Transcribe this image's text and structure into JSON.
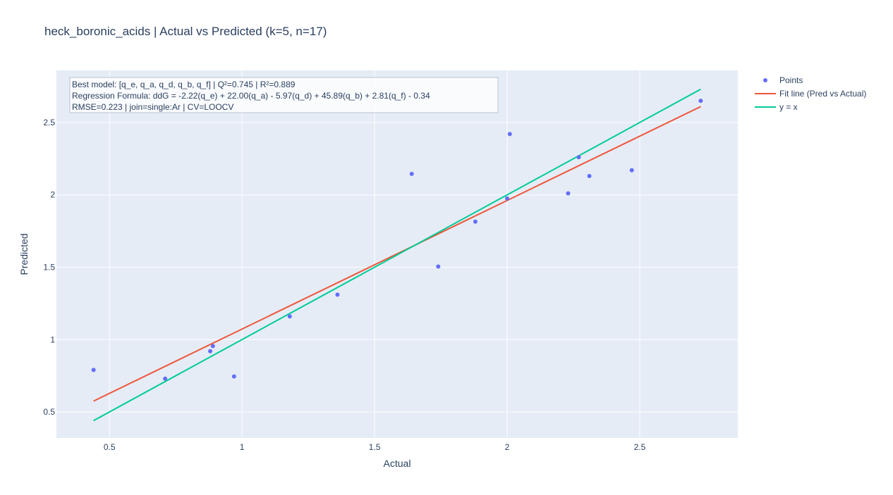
{
  "chart_data": {
    "type": "scatter",
    "title": "heck_boronic_acids | Actual vs Predicted (k=5, n=17)",
    "xlabel": "Actual",
    "ylabel": "Predicted",
    "xlim": [
      0.3,
      2.87
    ],
    "ylim": [
      0.32,
      2.86
    ],
    "xticks": [
      0.5,
      1,
      1.5,
      2,
      2.5
    ],
    "xtick_labels": [
      "0.5",
      "1",
      "1.5",
      "2",
      "2.5"
    ],
    "yticks": [
      0.5,
      1,
      1.5,
      2,
      2.5
    ],
    "ytick_labels": [
      "0.5",
      "1",
      "1.5",
      "2",
      "2.5"
    ],
    "grid": true,
    "legend_position": "top-right, outside plot",
    "series": [
      {
        "name": "Points",
        "mode": "markers",
        "color": "#636efa",
        "x": [
          0.44,
          0.71,
          0.88,
          0.89,
          0.97,
          1.18,
          1.36,
          1.64,
          1.74,
          1.88,
          2.0,
          2.01,
          2.23,
          2.27,
          2.31,
          2.47,
          2.73
        ],
        "y": [
          0.79,
          0.73,
          0.92,
          0.955,
          0.745,
          1.16,
          1.31,
          2.145,
          1.505,
          1.815,
          1.975,
          2.42,
          2.01,
          2.26,
          2.13,
          2.17,
          2.65
        ]
      },
      {
        "name": "Fit line (Pred vs Actual)",
        "mode": "lines",
        "color": "#ef553b",
        "x": [
          0.44,
          2.73
        ],
        "y": [
          0.575,
          2.61
        ]
      },
      {
        "name": "y = x",
        "mode": "lines",
        "color": "#00cc96",
        "x": [
          0.44,
          2.73
        ],
        "y": [
          0.44,
          2.73
        ]
      }
    ],
    "annotation": [
      "Best model: [q_e, q_a, q_d, q_b, q_f] | Q²=0.745 | R²=0.889",
      "Regression Formula: ddG = -2.22(q_e) + 22.00(q_a) - 5.97(q_d) + 45.89(q_b) + 2.81(q_f) - 0.34",
      "RMSE=0.223 | join=single:Ar | CV=LOOCV"
    ],
    "colors": {
      "plot_bg": "#e5ecf6",
      "grid": "#ffffff",
      "text": "#2a3f5f"
    }
  }
}
